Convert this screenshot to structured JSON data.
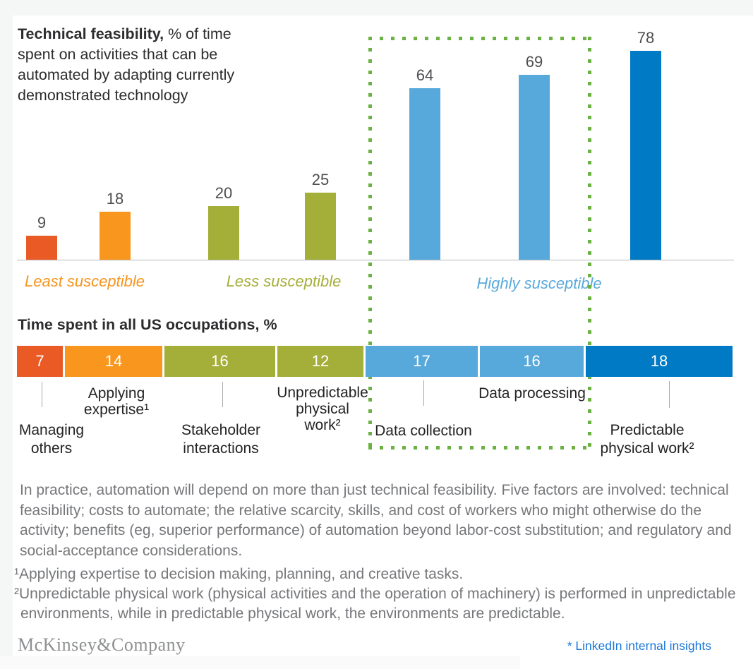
{
  "title": {
    "bold": "Technical feasibility,",
    "rest": " % of time spent on activities that can be automated by adapting currently demonstrated technology"
  },
  "section2_heading": "Time spent in all US occupations, %",
  "chart_data": [
    {
      "type": "bar",
      "title": "Technical feasibility, % of time spent on activities that can be automated by adapting currently demonstrated technology",
      "categories": [
        "Managing others",
        "Applying expertise¹",
        "Stakeholder interactions",
        "Unpredictable physical work²",
        "Data collection",
        "Data processing",
        "Predictable physical work²"
      ],
      "values": [
        9,
        18,
        20,
        25,
        64,
        69,
        78
      ],
      "bar_colors": [
        "#E95A25",
        "#F8961D",
        "#A4AF39",
        "#A4AF39",
        "#58A9DB",
        "#58A9DB",
        "#017AC5"
      ],
      "ylim": [
        0,
        80
      ],
      "grid": false,
      "data_labels_shown": true,
      "groups": [
        {
          "label": "Least susceptible",
          "color": "#F7941D"
        },
        {
          "label": "Less susceptible",
          "color": "#A4AF39"
        },
        {
          "label": "Highly susceptible",
          "color": "#58A9DB"
        }
      ],
      "highlight": {
        "style": "dotted-rectangle",
        "color": "#6BB243",
        "encloses": [
          "Data collection",
          "Data processing"
        ]
      }
    },
    {
      "type": "bar",
      "subtype": "horizontal-stacked",
      "title": "Time spent in all US occupations, %",
      "categories": [
        "Managing others",
        "Applying expertise¹",
        "Stakeholder interactions",
        "Unpredictable physical work²",
        "Data collection",
        "Data processing",
        "Predictable physical work²"
      ],
      "values": [
        7,
        14,
        16,
        12,
        17,
        16,
        18
      ],
      "bar_colors": [
        "#E95A25",
        "#F8961D",
        "#A4AF39",
        "#A4AF39",
        "#58A9DB",
        "#58A9DB",
        "#017AC5"
      ],
      "category_label_lines": [
        [
          "Managing",
          "others"
        ],
        [
          "Applying",
          "expertise¹"
        ],
        [
          "Stakeholder",
          "interactions"
        ],
        [
          "Unpredictable",
          "physical",
          "work²"
        ],
        [
          "Data collection"
        ],
        [
          "Data processing"
        ],
        [
          "Predictable",
          "physical work²"
        ]
      ]
    }
  ],
  "body_paragraph": "In practice, automation will depend on more than just technical feasibility. Five factors are involved: technical feasibility; costs to automate; the relative scarcity, skills, and cost of workers who might otherwise do the activity; benefits (eg, superior performance) of automation beyond labor-cost substitution; and regulatory and social-acceptance considerations.",
  "footnotes": [
    "¹Applying expertise to decision making, planning, and creative tasks.",
    "²Unpredictable physical work (physical activities and the operation of machinery) is performed in unpredictable environments, while in predictable physical work, the environments are predictable."
  ],
  "footer": {
    "brand": "McKinsey&Company",
    "source_note": "* LinkedIn internal insights",
    "source_color": "#1B78D8"
  }
}
